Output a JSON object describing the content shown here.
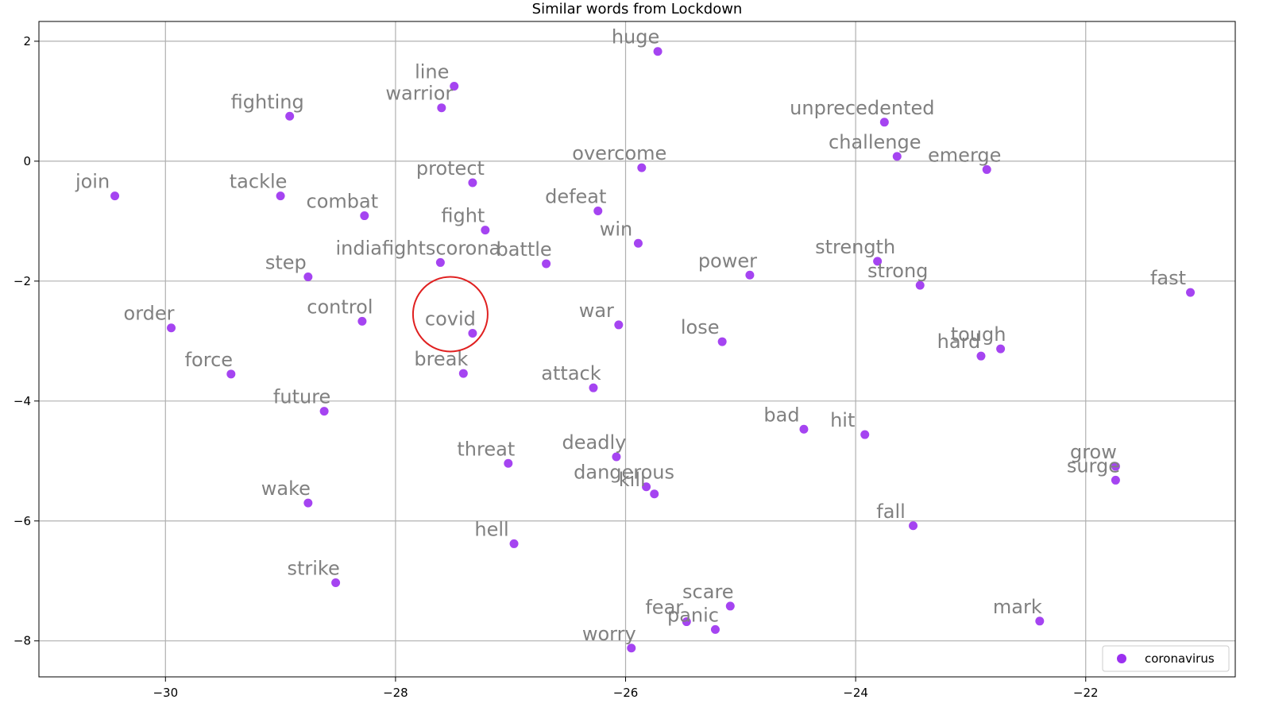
{
  "chart_data": {
    "type": "scatter",
    "title": "Similar words from Lockdown",
    "xlabel": "",
    "ylabel": "",
    "xlim": [
      -31.1,
      -20.7
    ],
    "ylim": [
      -8.6,
      2.33
    ],
    "xticks": [
      -30,
      -28,
      -26,
      -24,
      -22
    ],
    "yticks": [
      2,
      0,
      -2,
      -4,
      -6,
      -8
    ],
    "xtick_labels": [
      "−30",
      "−28",
      "−26",
      "−24",
      "−22"
    ],
    "ytick_labels": [
      "2",
      "0",
      "−2",
      "−4",
      "−6",
      "−8"
    ],
    "grid": true,
    "legend_position": "bottom-right",
    "marker_color": "#9b30f0",
    "label_color": "#808080",
    "highlight": {
      "word": "covid",
      "color": "#e02020"
    },
    "series": [
      {
        "name": "coronavirus",
        "points": [
          {
            "word": "huge",
            "x": -25.72,
            "y": 1.83
          },
          {
            "word": "line",
            "x": -27.49,
            "y": 1.25
          },
          {
            "word": "warrior",
            "x": -27.6,
            "y": 0.89
          },
          {
            "word": "fighting",
            "x": -28.92,
            "y": 0.75
          },
          {
            "word": "unprecedented",
            "x": -23.75,
            "y": 0.65
          },
          {
            "word": "challenge",
            "x": -23.64,
            "y": 0.08
          },
          {
            "word": "emerge",
            "x": -22.86,
            "y": -0.14
          },
          {
            "word": "overcome",
            "x": -25.86,
            "y": -0.11
          },
          {
            "word": "protect",
            "x": -27.33,
            "y": -0.36
          },
          {
            "word": "join",
            "x": -30.44,
            "y": -0.58
          },
          {
            "word": "tackle",
            "x": -29.0,
            "y": -0.58
          },
          {
            "word": "combat",
            "x": -28.27,
            "y": -0.91
          },
          {
            "word": "defeat",
            "x": -26.24,
            "y": -0.83
          },
          {
            "word": "fight",
            "x": -27.22,
            "y": -1.15
          },
          {
            "word": "win",
            "x": -25.89,
            "y": -1.37
          },
          {
            "word": "indiafightscorona",
            "x": -27.61,
            "y": -1.69
          },
          {
            "word": "battle",
            "x": -26.69,
            "y": -1.71
          },
          {
            "word": "step",
            "x": -28.76,
            "y": -1.93
          },
          {
            "word": "power",
            "x": -24.92,
            "y": -1.9
          },
          {
            "word": "strength",
            "x": -23.81,
            "y": -1.67
          },
          {
            "word": "strong",
            "x": -23.44,
            "y": -2.07
          },
          {
            "word": "fast",
            "x": -21.09,
            "y": -2.19
          },
          {
            "word": "order",
            "x": -29.95,
            "y": -2.78
          },
          {
            "word": "control",
            "x": -28.29,
            "y": -2.67
          },
          {
            "word": "covid",
            "x": -27.33,
            "y": -2.87
          },
          {
            "word": "war",
            "x": -26.06,
            "y": -2.73
          },
          {
            "word": "lose",
            "x": -25.16,
            "y": -3.01
          },
          {
            "word": "tough",
            "x": -22.74,
            "y": -3.13
          },
          {
            "word": "hard",
            "x": -22.91,
            "y": -3.25
          },
          {
            "word": "force",
            "x": -29.43,
            "y": -3.55
          },
          {
            "word": "break",
            "x": -27.41,
            "y": -3.54
          },
          {
            "word": "attack",
            "x": -26.28,
            "y": -3.78
          },
          {
            "word": "future",
            "x": -28.62,
            "y": -4.17
          },
          {
            "word": "bad",
            "x": -24.45,
            "y": -4.47
          },
          {
            "word": "hit",
            "x": -23.92,
            "y": -4.56
          },
          {
            "word": "threat",
            "x": -27.02,
            "y": -5.04
          },
          {
            "word": "deadly",
            "x": -26.08,
            "y": -4.93
          },
          {
            "word": "dangerous",
            "x": -25.82,
            "y": -5.43
          },
          {
            "word": "kill",
            "x": -25.75,
            "y": -5.55
          },
          {
            "word": "grow",
            "x": -21.74,
            "y": -5.09
          },
          {
            "word": "surge",
            "x": -21.74,
            "y": -5.32
          },
          {
            "word": "wake",
            "x": -28.76,
            "y": -5.7
          },
          {
            "word": "fall",
            "x": -23.5,
            "y": -6.08
          },
          {
            "word": "hell",
            "x": -26.97,
            "y": -6.38
          },
          {
            "word": "strike",
            "x": -28.52,
            "y": -7.03
          },
          {
            "word": "scare",
            "x": -25.09,
            "y": -7.42
          },
          {
            "word": "fear",
            "x": -25.47,
            "y": -7.68
          },
          {
            "word": "panic",
            "x": -25.22,
            "y": -7.81
          },
          {
            "word": "mark",
            "x": -22.4,
            "y": -7.67
          },
          {
            "word": "worry",
            "x": -25.95,
            "y": -8.12
          }
        ]
      }
    ]
  }
}
